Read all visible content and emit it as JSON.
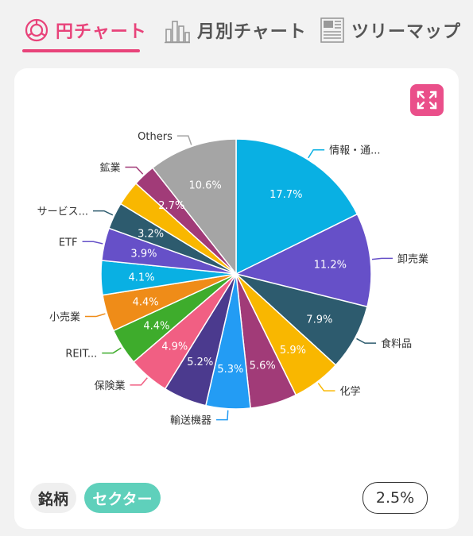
{
  "tabs": [
    {
      "label": "円チャート",
      "icon": "pie-chart-icon",
      "active": true
    },
    {
      "label": "月別チャート",
      "icon": "bar-chart-icon",
      "active": false
    },
    {
      "label": "ツリーマップ",
      "icon": "treemap-icon",
      "active": false
    }
  ],
  "colors": {
    "accent": "#e8437a",
    "sector_pill": "#5fd0bb"
  },
  "toolbar": {
    "expand_icon": "expand-icon"
  },
  "toggle": {
    "stock_label": "銘柄",
    "sector_label": "セクター",
    "threshold_label": "2.5%"
  },
  "chart_data": {
    "type": "pie",
    "slices": [
      {
        "label": "情報・通...",
        "value": 17.7,
        "pct_label": "17.7%",
        "color": "#09b0e3"
      },
      {
        "label": "卸売業",
        "value": 11.2,
        "pct_label": "11.2%",
        "color": "#6650c8"
      },
      {
        "label": "食料品",
        "value": 7.9,
        "pct_label": "7.9%",
        "color": "#2d5b6e"
      },
      {
        "label": "化学",
        "value": 5.9,
        "pct_label": "5.9%",
        "color": "#f9b700"
      },
      {
        "label": "",
        "value": 5.6,
        "pct_label": "5.6%",
        "color": "#a13b78"
      },
      {
        "label": "輸送機器",
        "value": 5.3,
        "pct_label": "5.3%",
        "color": "#239cf4"
      },
      {
        "label": "",
        "value": 5.2,
        "pct_label": "5.2%",
        "color": "#4b3a8e"
      },
      {
        "label": "保険業",
        "value": 4.9,
        "pct_label": "4.9%",
        "color": "#f15f83"
      },
      {
        "label": "REIT...",
        "value": 4.4,
        "pct_label": "4.4%",
        "color": "#3eac2c"
      },
      {
        "label": "小売業",
        "value": 4.4,
        "pct_label": "4.4%",
        "color": "#ef8c18"
      },
      {
        "label": "",
        "value": 4.1,
        "pct_label": "4.1%",
        "color": "#09b0e3"
      },
      {
        "label": "ETF",
        "value": 3.9,
        "pct_label": "3.9%",
        "color": "#6650c8"
      },
      {
        "label": "サービス...",
        "value": 3.2,
        "pct_label": "3.2%",
        "color": "#2d5b6e"
      },
      {
        "label": "",
        "value": 3.0,
        "pct_label": "",
        "color": "#f9b700"
      },
      {
        "label": "鉱業",
        "value": 2.7,
        "pct_label": "2.7%",
        "color": "#a13b78"
      },
      {
        "label": "Others",
        "value": 10.6,
        "pct_label": "10.6%",
        "color": "#a5a5a5"
      }
    ]
  }
}
